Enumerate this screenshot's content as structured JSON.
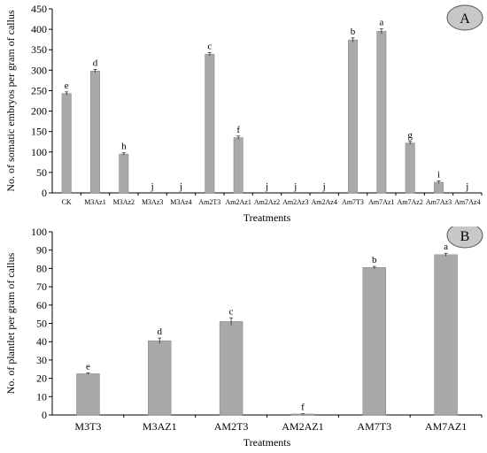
{
  "chart_data": [
    {
      "type": "bar",
      "panel_label": "A",
      "title": "",
      "xlabel": "Treatments",
      "ylabel": "No. of somatic embryos per  gram of callus",
      "ylim": [
        0,
        450
      ],
      "yticks": [
        0,
        50,
        100,
        150,
        200,
        250,
        300,
        350,
        400,
        450
      ],
      "grid": false,
      "categories": [
        "CK",
        "M3Az1",
        "M3Az2",
        "M3Az3",
        "M3Az4",
        "Am2T3",
        "Am2Az1",
        "Am2Az2",
        "Am2Az3",
        "Am2Az4",
        "Am7T3",
        "Am7Az1",
        "Am7Az2",
        "Am7Az3",
        "Am7Az4"
      ],
      "values": [
        243,
        298,
        95,
        0,
        0,
        339,
        135,
        0,
        0,
        0,
        374,
        395,
        122,
        26,
        0
      ],
      "errors": [
        4,
        4,
        3,
        0,
        0,
        4,
        4,
        0,
        0,
        0,
        5,
        6,
        4,
        3,
        0
      ],
      "labels": [
        "e",
        "d",
        "h",
        "j",
        "j",
        "c",
        "f",
        "j",
        "j",
        "j",
        "b",
        "a",
        "g",
        "i",
        "j"
      ]
    },
    {
      "type": "bar",
      "panel_label": "B",
      "title": "",
      "xlabel": "Treatments",
      "ylabel": "No. of plantlet  per  gram of callus",
      "ylim": [
        0,
        100
      ],
      "yticks": [
        0,
        10,
        20,
        30,
        40,
        50,
        60,
        70,
        80,
        90,
        100
      ],
      "grid": false,
      "categories": [
        "M3T3",
        "M3AZ1",
        "AM2T3",
        "AM2AZ1",
        "AM7T3",
        "AM7AZ1"
      ],
      "values": [
        22.5,
        40.5,
        51,
        0.5,
        80.5,
        87.5
      ],
      "errors": [
        0.4,
        1.5,
        2.0,
        0.2,
        0.6,
        0.8
      ],
      "labels": [
        "e",
        "d",
        "c",
        "f",
        "b",
        "a"
      ]
    }
  ]
}
